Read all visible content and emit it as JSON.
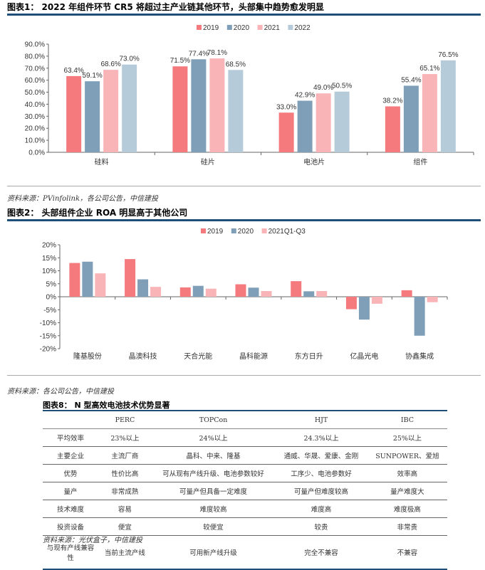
{
  "figure1": {
    "title": "图表1：  2022 年组件环节 CR5 将超过主产业链其他环节，头部集中趋势愈发明显",
    "source": "资料来源：PVinfolink，各公司公告，中信建投"
  },
  "figure2": {
    "title": "图表2：  头部组件企业 ROA 明显高于其他公司",
    "source": "资料来源：各公司公告，中信建投"
  },
  "figure8": {
    "title": "图表8：  N 型高效电池技术优势显著",
    "source": "资料来源：光伏盒子，中信建投",
    "headers": [
      "",
      "PERC",
      "TOPCon",
      "HJT",
      "IBC"
    ],
    "rows": [
      [
        "平均效率",
        "23%以上",
        "24%以上",
        "24.3%以上",
        "25%以上"
      ],
      [
        "主要企业",
        "主流厂商",
        "晶科、中来、隆基",
        "通威、华晟、爱康、金刚",
        "SUNPOWER、爱旭"
      ],
      [
        "优势",
        "性价比高",
        "可从现有产线升级、电池参数较好",
        "工序少、电池参数好",
        "效率高"
      ],
      [
        "量产",
        "非常成熟",
        "可量产但具备一定难度",
        "可量产但难度较高",
        "量产难度大"
      ],
      [
        "技术难度",
        "容易",
        "难度较高",
        "难度高",
        "难度极高"
      ],
      [
        "投资设备",
        "便宜",
        "较便宜",
        "较贵",
        "非常贵"
      ],
      [
        "与现有产线兼容性",
        "当前主流产线",
        "可用新产线升级",
        "完全不兼容",
        "不兼容"
      ]
    ]
  },
  "chart_data": [
    {
      "type": "bar",
      "title": "",
      "categories": [
        "硅料",
        "硅片",
        "电池片",
        "组件"
      ],
      "series": [
        {
          "name": "2019",
          "values": [
            63.4,
            71.5,
            33.0,
            38.2
          ],
          "color": "#f47a7e"
        },
        {
          "name": "2020",
          "values": [
            59.1,
            77.4,
            42.9,
            55.4
          ],
          "color": "#7f9fb8"
        },
        {
          "name": "2021",
          "values": [
            68.6,
            78.1,
            49.0,
            65.1
          ],
          "color": "#f9b4b8"
        },
        {
          "name": "2022",
          "values": [
            73.0,
            68.5,
            50.5,
            76.5
          ],
          "color": "#b6cbd9"
        }
      ],
      "ylim": [
        0,
        90
      ],
      "yticks": [
        "0.0%",
        "10.0%",
        "20.0%",
        "30.0%",
        "40.0%",
        "50.0%",
        "60.0%",
        "70.0%",
        "80.0%",
        "90.0%"
      ],
      "data_labels": true,
      "legend": "top-center"
    },
    {
      "type": "bar",
      "title": "",
      "categories": [
        "隆基股份",
        "晶澳科技",
        "天合光能",
        "晶科能源",
        "东方日升",
        "亿晶光电",
        "协鑫集成"
      ],
      "series": [
        {
          "name": "2019",
          "values": [
            13.0,
            14.5,
            3.6,
            4.8,
            6.0,
            -4.8,
            2.5
          ],
          "color": "#f47a7e"
        },
        {
          "name": "2020",
          "values": [
            13.5,
            6.7,
            4.2,
            3.5,
            2.1,
            -8.8,
            -15.0
          ],
          "color": "#7f9fb8"
        },
        {
          "name": "2021Q1-Q3",
          "values": [
            9.0,
            3.8,
            3.1,
            2.2,
            2.2,
            -2.7,
            -2.1
          ],
          "color": "#f9b4b8"
        }
      ],
      "ylim": [
        -20,
        20
      ],
      "yticks": [
        "-20%",
        "-15%",
        "-10%",
        "-5%",
        "0%",
        "5%",
        "10%",
        "15%",
        "20%"
      ],
      "data_labels": false,
      "legend": "top-center"
    }
  ]
}
